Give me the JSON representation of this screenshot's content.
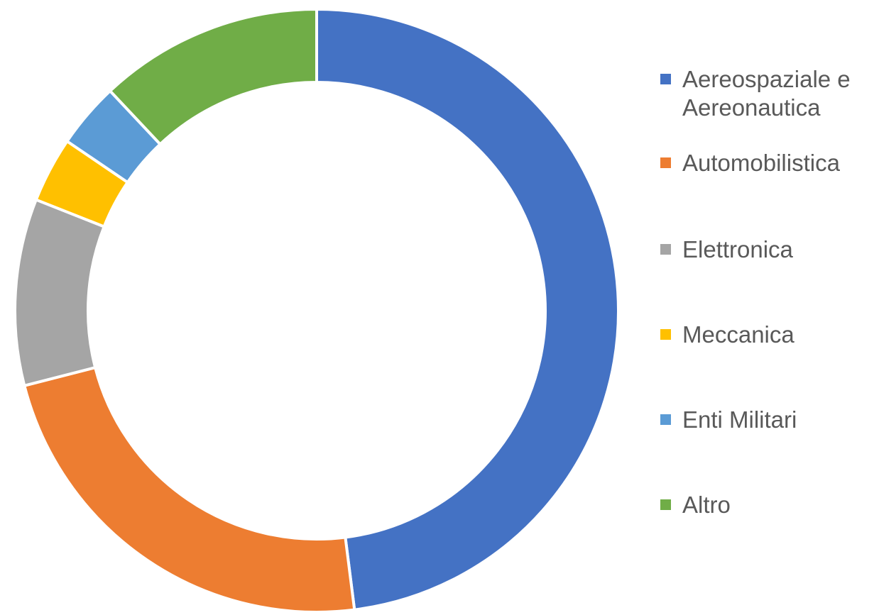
{
  "chart_data": {
    "type": "pie",
    "variant": "donut",
    "categories": [
      "Aereospaziale e Aereonautica",
      "Automobilistica",
      "Elettronica",
      "Meccanica",
      "Enti Militari",
      "Altro"
    ],
    "values": [
      48,
      23,
      10,
      3.5,
      3.5,
      12
    ],
    "colors": [
      "#4472C4",
      "#ED7D31",
      "#A5A5A5",
      "#FFC000",
      "#5B9BD5",
      "#70AD47"
    ],
    "legend_position": "right",
    "title": "",
    "data_labels": false
  },
  "legend": {
    "items": [
      {
        "label": "Aereospaziale e Aereonautica",
        "color": "#4472C4"
      },
      {
        "label": "Automobilistica",
        "color": "#ED7D31"
      },
      {
        "label": "Elettronica",
        "color": "#A5A5A5"
      },
      {
        "label": "Meccanica",
        "color": "#FFC000"
      },
      {
        "label": "Enti Militari",
        "color": "#5B9BD5"
      },
      {
        "label": "Altro",
        "color": "#70AD47"
      }
    ]
  }
}
